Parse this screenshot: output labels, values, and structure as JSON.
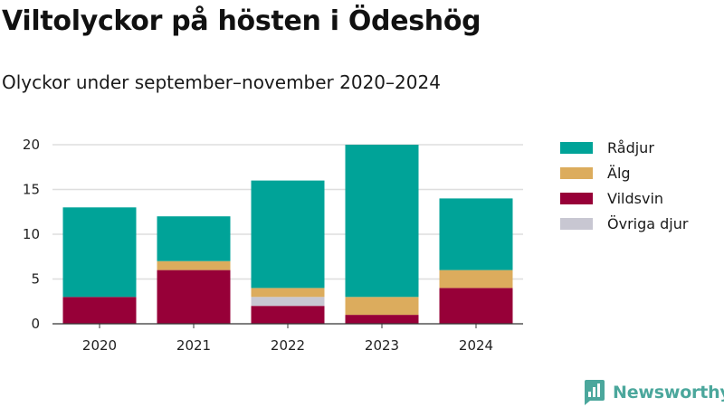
{
  "header": {
    "title": "Viltolyckor på hösten i Ödeshög",
    "subtitle": "Olyckor under september–november 2020–2024"
  },
  "brand": {
    "name": "Newsworthy",
    "color": "#4ba79c",
    "icon": "bar-chart-logo-icon"
  },
  "chart_data": {
    "type": "bar",
    "stacked": true,
    "title": "Viltolyckor på hösten i Ödeshög",
    "subtitle": "Olyckor under september–november 2020–2024",
    "categories": [
      "2020",
      "2021",
      "2022",
      "2023",
      "2024"
    ],
    "series": [
      {
        "name": "Vildsvin",
        "color": "#970038",
        "values": [
          3,
          6,
          2,
          1,
          4
        ]
      },
      {
        "name": "Övriga djur",
        "color": "#c8c7d2",
        "values": [
          0,
          0,
          1,
          0,
          0
        ]
      },
      {
        "name": "Älg",
        "color": "#dcac5d",
        "values": [
          0,
          1,
          1,
          2,
          2
        ]
      },
      {
        "name": "Rådjur",
        "color": "#00a398",
        "values": [
          10,
          5,
          12,
          17,
          8
        ]
      }
    ],
    "legend_order": [
      "Rådjur",
      "Älg",
      "Vildsvin",
      "Övriga djur"
    ],
    "y_ticks": [
      0,
      5,
      10,
      15,
      20
    ],
    "ylim": [
      0,
      20
    ],
    "xlabel": "",
    "ylabel": "",
    "grid": true,
    "legend_position": "right"
  }
}
